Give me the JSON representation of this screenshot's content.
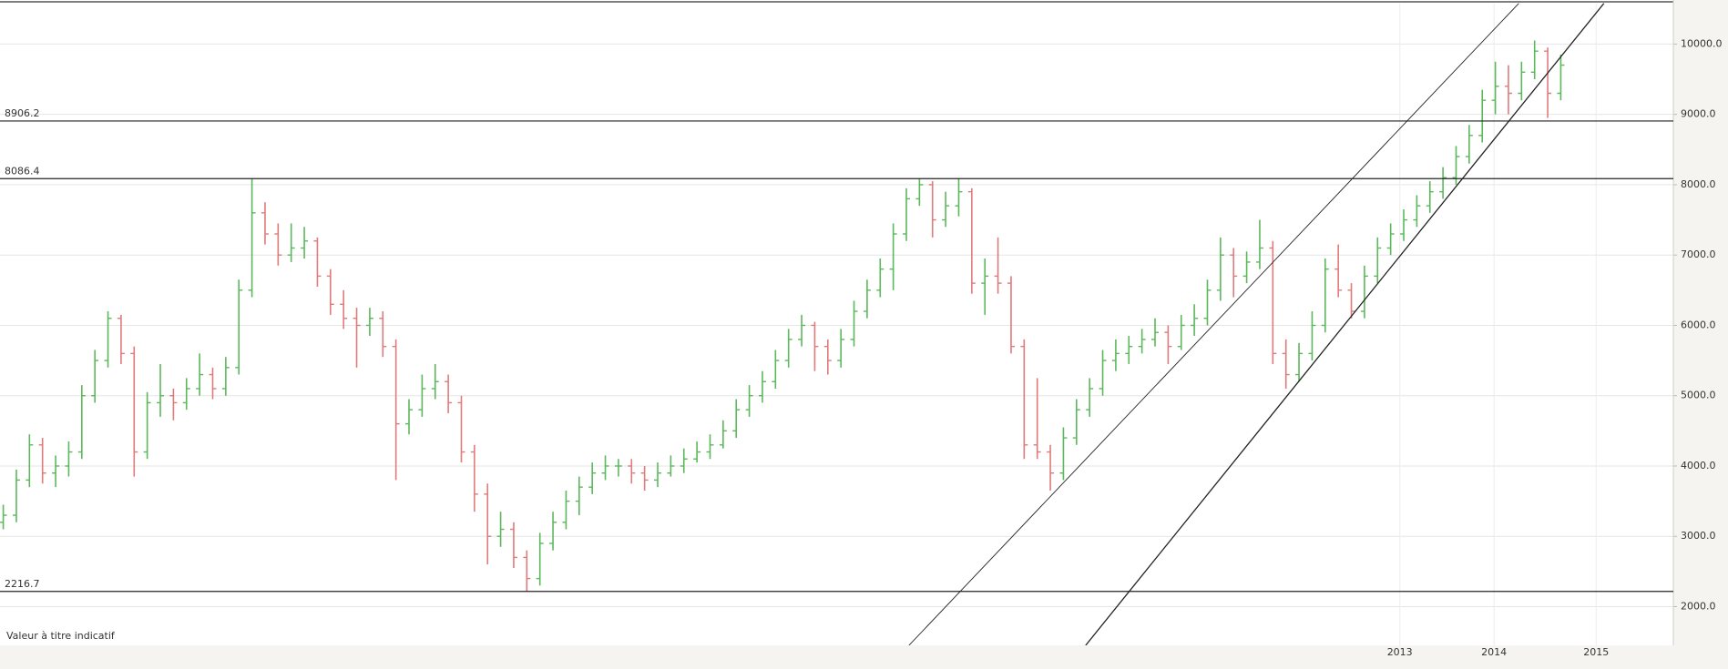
{
  "chart_data": {
    "type": "ohlc",
    "open": [
      3200,
      3300,
      3800,
      4300,
      3900,
      4000,
      4200,
      5000,
      5500,
      6100,
      5600,
      4200,
      4900,
      5000,
      4900,
      5100,
      5300,
      5100,
      5400,
      6500,
      7600,
      7300,
      7000,
      7100,
      7200,
      6700,
      6300,
      6100,
      6000,
      6100,
      5700,
      4600,
      4800,
      5100,
      5200,
      4900,
      4200,
      3600,
      3000,
      3100,
      2700,
      2400,
      2900,
      3200,
      3500,
      3700,
      3900,
      4000,
      4000,
      3900,
      3800,
      3900,
      4000,
      4100,
      4200,
      4300,
      4500,
      4800,
      5000,
      5200,
      5500,
      5800,
      6000,
      5700,
      5500,
      5800,
      6200,
      6500,
      6800,
      7300,
      7800,
      8000,
      7500,
      7700,
      7900,
      6600,
      6700,
      6600,
      5700,
      4300,
      4200,
      3900,
      4400,
      4800,
      5100,
      5500,
      5600,
      5700,
      5800,
      5900,
      5700,
      6000,
      6100,
      6500,
      7000,
      6700,
      6900,
      7100,
      5600,
      5300,
      5600,
      6000,
      6800,
      6500,
      6200,
      6700,
      7100,
      7300,
      7500,
      7700,
      7900,
      8100,
      8400,
      8700,
      9200,
      9400,
      9300,
      9600,
      9900,
      9300
    ],
    "high": [
      3450,
      3950,
      4450,
      4400,
      4150,
      4350,
      5150,
      5650,
      6200,
      6150,
      5700,
      5050,
      5450,
      5100,
      5250,
      5600,
      5400,
      5550,
      6650,
      8086,
      7750,
      7450,
      7450,
      7400,
      7250,
      6800,
      6500,
      6250,
      6250,
      6200,
      5800,
      4950,
      5300,
      5450,
      5300,
      5000,
      4300,
      3750,
      3350,
      3200,
      2800,
      3050,
      3350,
      3650,
      3850,
      4050,
      4150,
      4100,
      4100,
      4000,
      4050,
      4150,
      4250,
      4350,
      4450,
      4650,
      4950,
      5150,
      5350,
      5650,
      5950,
      6150,
      6050,
      5800,
      5950,
      6350,
      6650,
      6950,
      7450,
      7950,
      8086,
      8050,
      7900,
      8086,
      7950,
      6950,
      7250,
      6700,
      5800,
      5250,
      4300,
      4550,
      4950,
      5250,
      5650,
      5800,
      5850,
      5950,
      6100,
      6000,
      6150,
      6300,
      6650,
      7250,
      7100,
      7050,
      7500,
      7200,
      5800,
      5750,
      6200,
      6950,
      7150,
      6600,
      6850,
      7250,
      7450,
      7650,
      7850,
      8050,
      8250,
      8550,
      8850,
      9350,
      9750,
      9700,
      9750,
      10050,
      9950,
      9850
    ],
    "low": [
      3100,
      3200,
      3700,
      3750,
      3700,
      3850,
      4100,
      4900,
      5400,
      5450,
      3850,
      4100,
      4700,
      4650,
      4800,
      5000,
      4950,
      5000,
      5300,
      6400,
      7150,
      6850,
      6900,
      6950,
      6550,
      6150,
      5950,
      5400,
      5850,
      5550,
      3800,
      4450,
      4700,
      4950,
      4750,
      4050,
      3350,
      2600,
      2850,
      2550,
      2220,
      2300,
      2800,
      3100,
      3300,
      3600,
      3800,
      3850,
      3750,
      3650,
      3700,
      3850,
      3900,
      4050,
      4100,
      4250,
      4400,
      4700,
      4900,
      5100,
      5400,
      5700,
      5350,
      5300,
      5400,
      5700,
      6100,
      6400,
      6500,
      7200,
      7700,
      7250,
      7400,
      7550,
      6450,
      6150,
      6450,
      5600,
      4100,
      4100,
      3650,
      3800,
      4300,
      4700,
      5000,
      5350,
      5450,
      5600,
      5700,
      5450,
      5650,
      5850,
      6000,
      6350,
      6400,
      6600,
      6800,
      5450,
      5100,
      5200,
      5500,
      5900,
      6400,
      6100,
      6100,
      6600,
      7000,
      7200,
      7400,
      7600,
      7800,
      8000,
      8300,
      8600,
      9000,
      9000,
      9200,
      9500,
      8950,
      9200
    ],
    "close": [
      3300,
      3800,
      4300,
      3900,
      4000,
      4200,
      5000,
      5500,
      6100,
      5600,
      4200,
      4900,
      5000,
      4900,
      5100,
      5300,
      5100,
      5400,
      6500,
      7600,
      7300,
      7000,
      7100,
      7200,
      6700,
      6300,
      6100,
      6000,
      6100,
      5700,
      4600,
      4800,
      5100,
      5200,
      4900,
      4200,
      3600,
      3000,
      3100,
      2700,
      2400,
      2900,
      3200,
      3500,
      3700,
      3900,
      4000,
      4000,
      3900,
      3800,
      3900,
      4000,
      4100,
      4200,
      4300,
      4500,
      4800,
      5000,
      5200,
      5500,
      5800,
      6000,
      5700,
      5500,
      5800,
      6200,
      6500,
      6800,
      7300,
      7800,
      8000,
      7500,
      7700,
      7900,
      6600,
      6700,
      6600,
      5700,
      4300,
      4200,
      3900,
      4400,
      4800,
      5100,
      5500,
      5600,
      5700,
      5800,
      5900,
      5700,
      6000,
      6100,
      6500,
      7000,
      6700,
      6900,
      7100,
      5600,
      5300,
      5600,
      6000,
      6800,
      6500,
      6200,
      6700,
      7100,
      7300,
      7500,
      7700,
      7900,
      8100,
      8400,
      8700,
      9200,
      9400,
      9300,
      9600,
      9900,
      9300,
      9700
    ],
    "up_color": "#5cb85c",
    "down_color": "#e07b7b",
    "xlim": [
      -0.25,
      127.6
    ],
    "xticks": [
      {
        "value": 106.7,
        "label": "2013"
      },
      {
        "value": 113.9,
        "label": "2014"
      },
      {
        "value": 121.7,
        "label": "2015"
      }
    ],
    "ylim": [
      1450,
      10580
    ],
    "yticks": [
      {
        "value": 2000,
        "label": "2000.0"
      },
      {
        "value": 3000,
        "label": "3000.0"
      },
      {
        "value": 4000,
        "label": "4000.0"
      },
      {
        "value": 5000,
        "label": "5000.0"
      },
      {
        "value": 6000,
        "label": "6000.0"
      },
      {
        "value": 7000,
        "label": "7000.0"
      },
      {
        "value": 8000,
        "label": "8000.0"
      },
      {
        "value": 9000,
        "label": "9000.0"
      },
      {
        "value": 10000,
        "label": "10000.0"
      }
    ],
    "grid": true,
    "levels": [
      8906.2,
      8086.4,
      2216.7
    ],
    "trendlines": [
      {
        "x": [
          69.2,
          115.8
        ],
        "y": [
          1450,
          10580
        ]
      },
      {
        "x": [
          82.7,
          122.3
        ],
        "y": [
          1450,
          10580
        ]
      }
    ],
    "annotation": "Valeur à titre indicatif"
  }
}
